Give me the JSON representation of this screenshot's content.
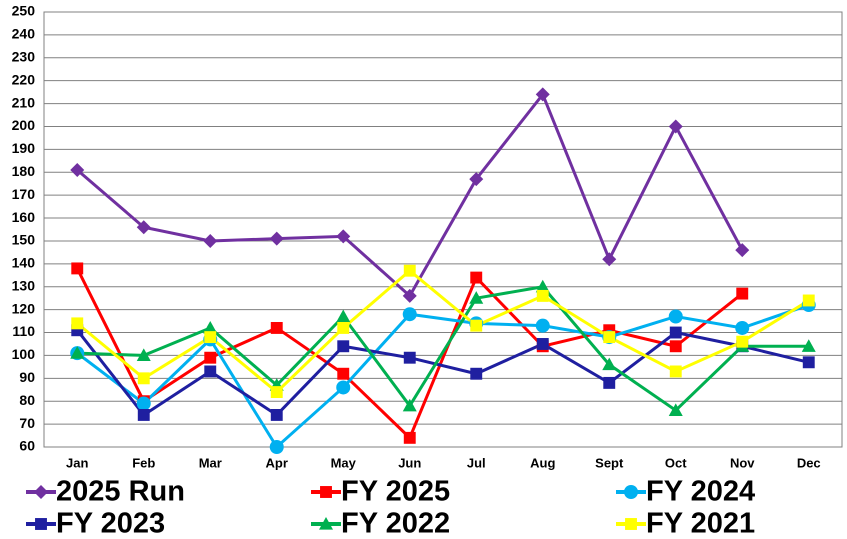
{
  "chart_data": {
    "type": "line",
    "categories": [
      "Jan",
      "Feb",
      "Mar",
      "Apr",
      "May",
      "Jun",
      "Jul",
      "Aug",
      "Sept",
      "Oct",
      "Nov",
      "Dec"
    ],
    "series": [
      {
        "name": "2025 Run",
        "color": "#7030a0",
        "marker": "diamond",
        "values": [
          181,
          156,
          150,
          151,
          152,
          126,
          177,
          214,
          142,
          200,
          146,
          null
        ]
      },
      {
        "name": "FY 2025",
        "color": "#ff0000",
        "marker": "square",
        "values": [
          138,
          80,
          99,
          112,
          92,
          64,
          134,
          104,
          111,
          104,
          127,
          null
        ]
      },
      {
        "name": "FY 2024",
        "color": "#00b0f0",
        "marker": "circle",
        "values": [
          101,
          79,
          107,
          60,
          86,
          118,
          114,
          113,
          108,
          117,
          112,
          122
        ]
      },
      {
        "name": "FY 2023",
        "color": "#1f1fa0",
        "marker": "square",
        "values": [
          111,
          74,
          93,
          74,
          104,
          99,
          92,
          105,
          88,
          110,
          104,
          97
        ]
      },
      {
        "name": "FY 2022",
        "color": "#00b050",
        "marker": "triangle",
        "values": [
          101,
          100,
          112,
          87,
          117,
          78,
          125,
          130,
          96,
          76,
          104,
          104
        ]
      },
      {
        "name": "FY 2021",
        "color": "#ffff00",
        "marker": "square",
        "values": [
          114,
          90,
          108,
          84,
          112,
          137,
          113,
          126,
          108,
          93,
          106,
          124
        ]
      }
    ],
    "ylim": [
      60,
      250
    ],
    "yticks": [
      60,
      70,
      80,
      90,
      100,
      110,
      120,
      130,
      140,
      150,
      160,
      170,
      180,
      190,
      200,
      210,
      220,
      230,
      240,
      250
    ],
    "grid": true
  }
}
